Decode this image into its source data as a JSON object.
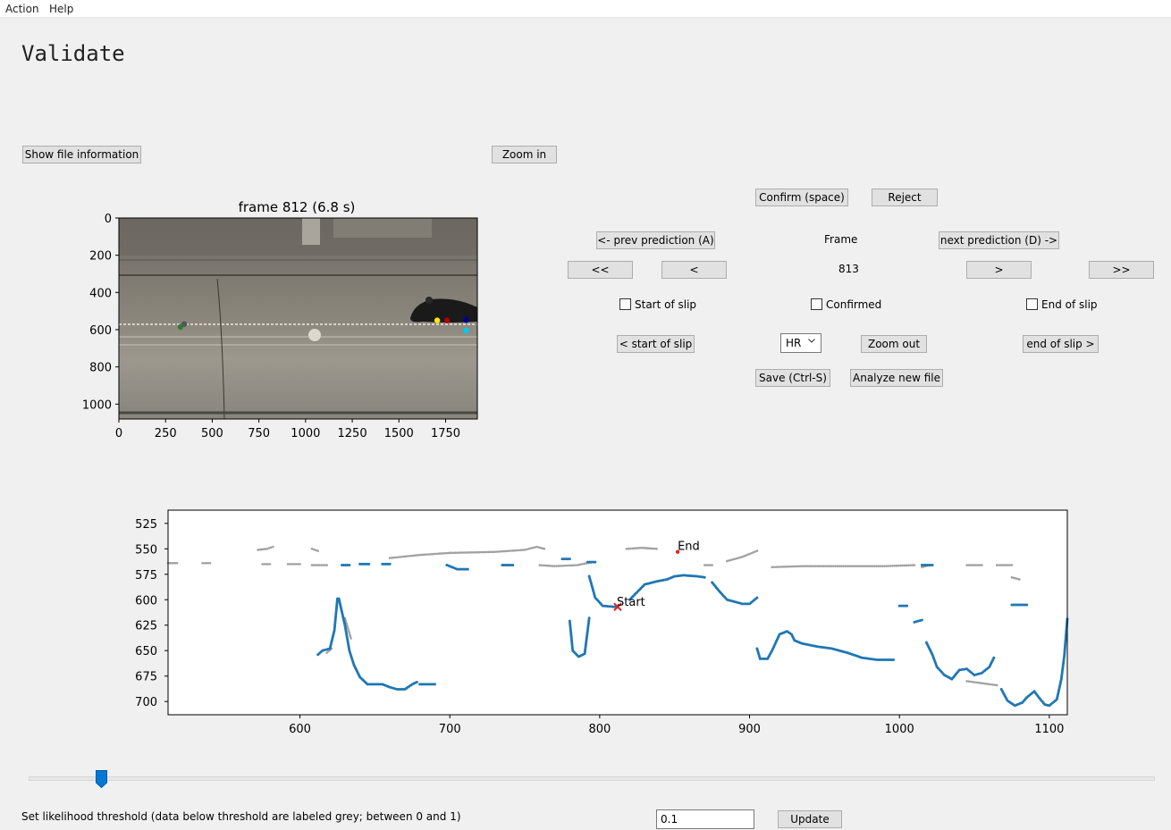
{
  "menu": {
    "action": "Action",
    "help": "Help"
  },
  "page_title": "Validate",
  "buttons": {
    "show_file_info": "Show file information",
    "zoom_in": "Zoom in",
    "confirm": "Confirm (space)",
    "reject": "Reject",
    "prev_prediction": "<- prev prediction (A)",
    "next_prediction": "next prediction (D) ->",
    "jump_back": "<<",
    "step_back": "<",
    "step_forward": ">",
    "jump_forward": ">>",
    "start_of_slip_nav": "< start of slip",
    "zoom_out": "Zoom out",
    "end_of_slip_nav": "end of slip >",
    "save": "Save (Ctrl-S)",
    "analyze_new_file": "Analyze new file",
    "update": "Update"
  },
  "frame": {
    "label": "Frame",
    "value": "813"
  },
  "checkboxes": {
    "start_of_slip": {
      "label": "Start of slip",
      "checked": false
    },
    "confirmed": {
      "label": "Confirmed",
      "checked": false
    },
    "end_of_slip": {
      "label": "End of slip",
      "checked": false
    }
  },
  "limb_select": {
    "value": "HR"
  },
  "threshold": {
    "label": "Set likelihood threshold (data below threshold are labeled grey; between 0 and 1)",
    "value": "0.1",
    "slider_fraction": 0.06
  },
  "colors": {
    "series": "#1f77b4",
    "low_likelihood": "#a0a0a0",
    "marker": "#d62728",
    "button_face": "#e1e1e1"
  },
  "chart_data": [
    {
      "type": "image",
      "title": "frame 812 (6.8 s)",
      "xticks": [
        "0",
        "250",
        "500",
        "750",
        "1000",
        "1250",
        "1500",
        "1750"
      ],
      "yticks": [
        "0",
        "200",
        "400",
        "600",
        "800",
        "1000"
      ],
      "xlim": [
        0,
        1920
      ],
      "ylim": [
        1080,
        0
      ],
      "keypoints": [
        {
          "x": 350,
          "y": 570,
          "color": "#555555"
        },
        {
          "x": 330,
          "y": 585,
          "color": "#2e7d32"
        },
        {
          "x": 1705,
          "y": 550,
          "color": "#ffe600"
        },
        {
          "x": 1758,
          "y": 550,
          "color": "#b00000"
        },
        {
          "x": 1860,
          "y": 548,
          "color": "#000090"
        },
        {
          "x": 1860,
          "y": 605,
          "color": "#00c8e8"
        }
      ]
    },
    {
      "type": "scatter",
      "title": "",
      "xlabel": "",
      "ylabel": "",
      "xlim": [
        512,
        1112
      ],
      "ylim": [
        713,
        512
      ],
      "xticks": [
        600,
        700,
        800,
        900,
        1000,
        1100
      ],
      "yticks": [
        525,
        550,
        575,
        600,
        625,
        650,
        675,
        700
      ],
      "annotations": [
        {
          "text": "Start",
          "x": 812,
          "y": 607
        },
        {
          "text": "End",
          "x": 852,
          "y": 553
        }
      ],
      "high_segments": [
        [
          [
            612,
            654
          ],
          [
            615,
            650
          ],
          [
            620,
            648
          ],
          [
            623,
            630
          ],
          [
            625,
            599
          ],
          [
            626,
            599
          ],
          [
            628,
            612
          ],
          [
            630,
            625
          ],
          [
            633,
            650
          ],
          [
            636,
            664
          ],
          [
            640,
            676
          ],
          [
            645,
            683
          ],
          [
            655,
            683
          ],
          [
            660,
            686
          ],
          [
            665,
            688
          ],
          [
            670,
            688
          ],
          [
            675,
            683
          ],
          [
            678,
            681
          ]
        ],
        [
          [
            680,
            683
          ],
          [
            690,
            683
          ]
        ],
        [
          [
            698,
            566
          ],
          [
            705,
            570
          ],
          [
            712,
            570
          ]
        ],
        [
          [
            793,
            577
          ],
          [
            797,
            598
          ],
          [
            802,
            606
          ],
          [
            810,
            607
          ],
          [
            812,
            607
          ]
        ],
        [
          [
            820,
            600
          ],
          [
            830,
            585
          ],
          [
            838,
            582
          ],
          [
            845,
            580
          ],
          [
            850,
            577
          ],
          [
            856,
            576
          ],
          [
            865,
            577
          ],
          [
            870,
            578
          ]
        ],
        [
          [
            780,
            621
          ],
          [
            782,
            650
          ],
          [
            786,
            656
          ],
          [
            790,
            653
          ],
          [
            793,
            618
          ]
        ],
        [
          [
            875,
            583
          ],
          [
            880,
            592
          ],
          [
            885,
            600
          ],
          [
            895,
            604
          ],
          [
            900,
            604
          ],
          [
            905,
            598
          ]
        ],
        [
          [
            905,
            648
          ],
          [
            907,
            658
          ],
          [
            912,
            658
          ],
          [
            915,
            650
          ],
          [
            920,
            634
          ],
          [
            925,
            631
          ],
          [
            928,
            634
          ],
          [
            930,
            640
          ],
          [
            935,
            643
          ],
          [
            945,
            646
          ],
          [
            955,
            648
          ],
          [
            965,
            652
          ],
          [
            975,
            657
          ],
          [
            985,
            659
          ],
          [
            996,
            659
          ]
        ],
        [
          [
            1000,
            606
          ],
          [
            1005,
            606
          ]
        ],
        [
          [
            1010,
            622
          ],
          [
            1015,
            620
          ]
        ],
        [
          [
            1018,
            642
          ],
          [
            1022,
            654
          ],
          [
            1025,
            666
          ],
          [
            1030,
            674
          ],
          [
            1035,
            678
          ],
          [
            1040,
            669
          ],
          [
            1045,
            668
          ],
          [
            1050,
            674
          ],
          [
            1055,
            672
          ],
          [
            1060,
            666
          ],
          [
            1063,
            657
          ]
        ],
        [
          [
            1068,
            688
          ],
          [
            1072,
            699
          ],
          [
            1077,
            704
          ],
          [
            1082,
            701
          ],
          [
            1085,
            696
          ],
          [
            1090,
            690
          ],
          [
            1093,
            696
          ],
          [
            1097,
            703
          ],
          [
            1100,
            704
          ],
          [
            1105,
            698
          ],
          [
            1108,
            678
          ],
          [
            1110,
            655
          ],
          [
            1112,
            619
          ]
        ],
        [
          [
            1075,
            605
          ],
          [
            1085,
            605
          ]
        ],
        [
          [
            1015,
            566
          ],
          [
            1022,
            566
          ]
        ]
      ],
      "high_dashes": [
        [
          [
            628,
            566
          ],
          [
            633,
            566
          ]
        ],
        [
          [
            655,
            565
          ],
          [
            660,
            565
          ]
        ],
        [
          [
            735,
            566
          ],
          [
            742,
            566
          ]
        ],
        [
          [
            775,
            560
          ],
          [
            780,
            560
          ]
        ],
        [
          [
            792,
            563
          ],
          [
            797,
            563
          ]
        ],
        [
          [
            640,
            565
          ],
          [
            646,
            565
          ]
        ]
      ],
      "low_segments": [
        [
          [
            512,
            564
          ],
          [
            518,
            564
          ]
        ],
        [
          [
            535,
            564
          ],
          [
            540,
            564
          ]
        ],
        [
          [
            575,
            565
          ],
          [
            580,
            565
          ]
        ],
        [
          [
            592,
            565
          ],
          [
            600,
            565
          ]
        ],
        [
          [
            608,
            566
          ],
          [
            618,
            566
          ]
        ],
        [
          [
            572,
            551
          ],
          [
            578,
            550
          ],
          [
            582,
            548
          ]
        ],
        [
          [
            608,
            550
          ],
          [
            612,
            552
          ]
        ],
        [
          [
            660,
            559
          ],
          [
            680,
            556
          ],
          [
            700,
            554
          ],
          [
            730,
            553
          ],
          [
            750,
            551
          ],
          [
            758,
            548
          ],
          [
            763,
            550
          ]
        ],
        [
          [
            760,
            566
          ],
          [
            770,
            567
          ],
          [
            785,
            566
          ],
          [
            795,
            563
          ]
        ],
        [
          [
            818,
            550
          ],
          [
            828,
            549
          ],
          [
            838,
            550
          ]
        ],
        [
          [
            870,
            566
          ],
          [
            875,
            566
          ]
        ],
        [
          [
            885,
            562
          ],
          [
            895,
            558
          ],
          [
            905,
            552
          ]
        ],
        [
          [
            915,
            568
          ],
          [
            935,
            567
          ],
          [
            960,
            567
          ],
          [
            990,
            567
          ],
          [
            1010,
            566
          ]
        ],
        [
          [
            1045,
            566
          ],
          [
            1055,
            566
          ]
        ],
        [
          [
            1065,
            566
          ],
          [
            1075,
            566
          ]
        ],
        [
          [
            1075,
            578
          ],
          [
            1080,
            580
          ]
        ],
        [
          [
            618,
            652
          ],
          [
            621,
            648
          ]
        ],
        [
          [
            630,
            618
          ],
          [
            634,
            638
          ]
        ],
        [
          [
            1045,
            680
          ],
          [
            1065,
            684
          ]
        ],
        [
          [
            1015,
            568
          ],
          [
            1020,
            566
          ]
        ]
      ]
    }
  ]
}
